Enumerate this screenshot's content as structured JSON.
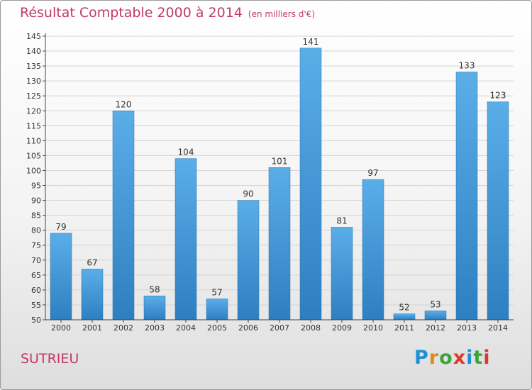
{
  "title": "Résultat Comptable 2000 à 2014",
  "subtitle": "(en milliers d'€)",
  "city": "SUTRIEU",
  "logo": {
    "letters": [
      "P",
      "r",
      "o",
      "x",
      "i",
      "t",
      "i"
    ],
    "colors": [
      "#1e90d8",
      "#e08a1e",
      "#3aa53a",
      "#d93a2a",
      "#1e90d8",
      "#3aa53a",
      "#d93a2a"
    ]
  },
  "colors": {
    "title": "#c23a66",
    "bar_light": "#5aaee8",
    "bar_dark": "#2e7fc0"
  },
  "chart_data": {
    "type": "bar",
    "title": "Résultat Comptable 2000 à 2014",
    "subtitle": "(en milliers d'€)",
    "categories": [
      "2000",
      "2001",
      "2002",
      "2003",
      "2004",
      "2005",
      "2006",
      "2007",
      "2008",
      "2009",
      "2010",
      "2011",
      "2012",
      "2013",
      "2014"
    ],
    "values": [
      79,
      67,
      120,
      58,
      104,
      57,
      90,
      101,
      141,
      81,
      97,
      52,
      53,
      133,
      123
    ],
    "ylim": [
      50,
      145
    ],
    "ytick_step": 5,
    "grid": "horizontal",
    "data_labels": true
  }
}
